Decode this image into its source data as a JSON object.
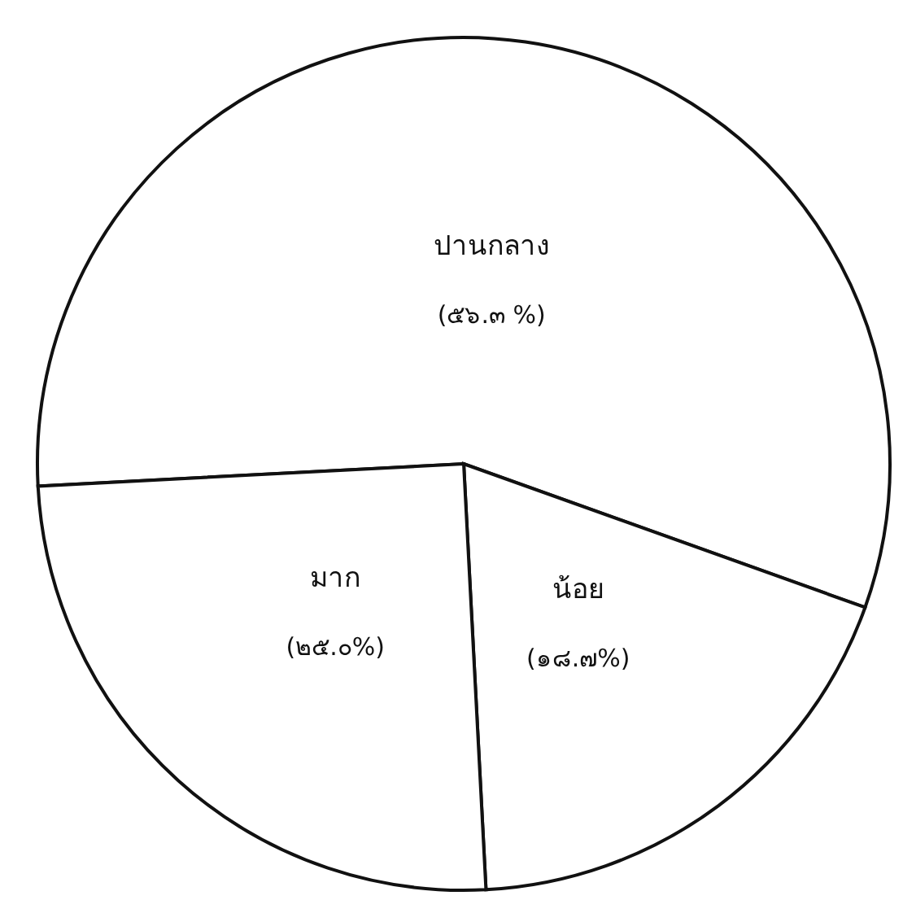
{
  "chart_data": {
    "type": "pie",
    "categories": [
      "ปานกลาง",
      "น้อย",
      "มาก"
    ],
    "values": [
      56.3,
      18.7,
      25.0
    ],
    "colors": [
      "#ffffff",
      "#ffffff",
      "#ffffff"
    ],
    "value_labels": [
      "(๕๖.๓ %)",
      "(๑๘.๗%)",
      "(๒๕.๐%)"
    ]
  }
}
